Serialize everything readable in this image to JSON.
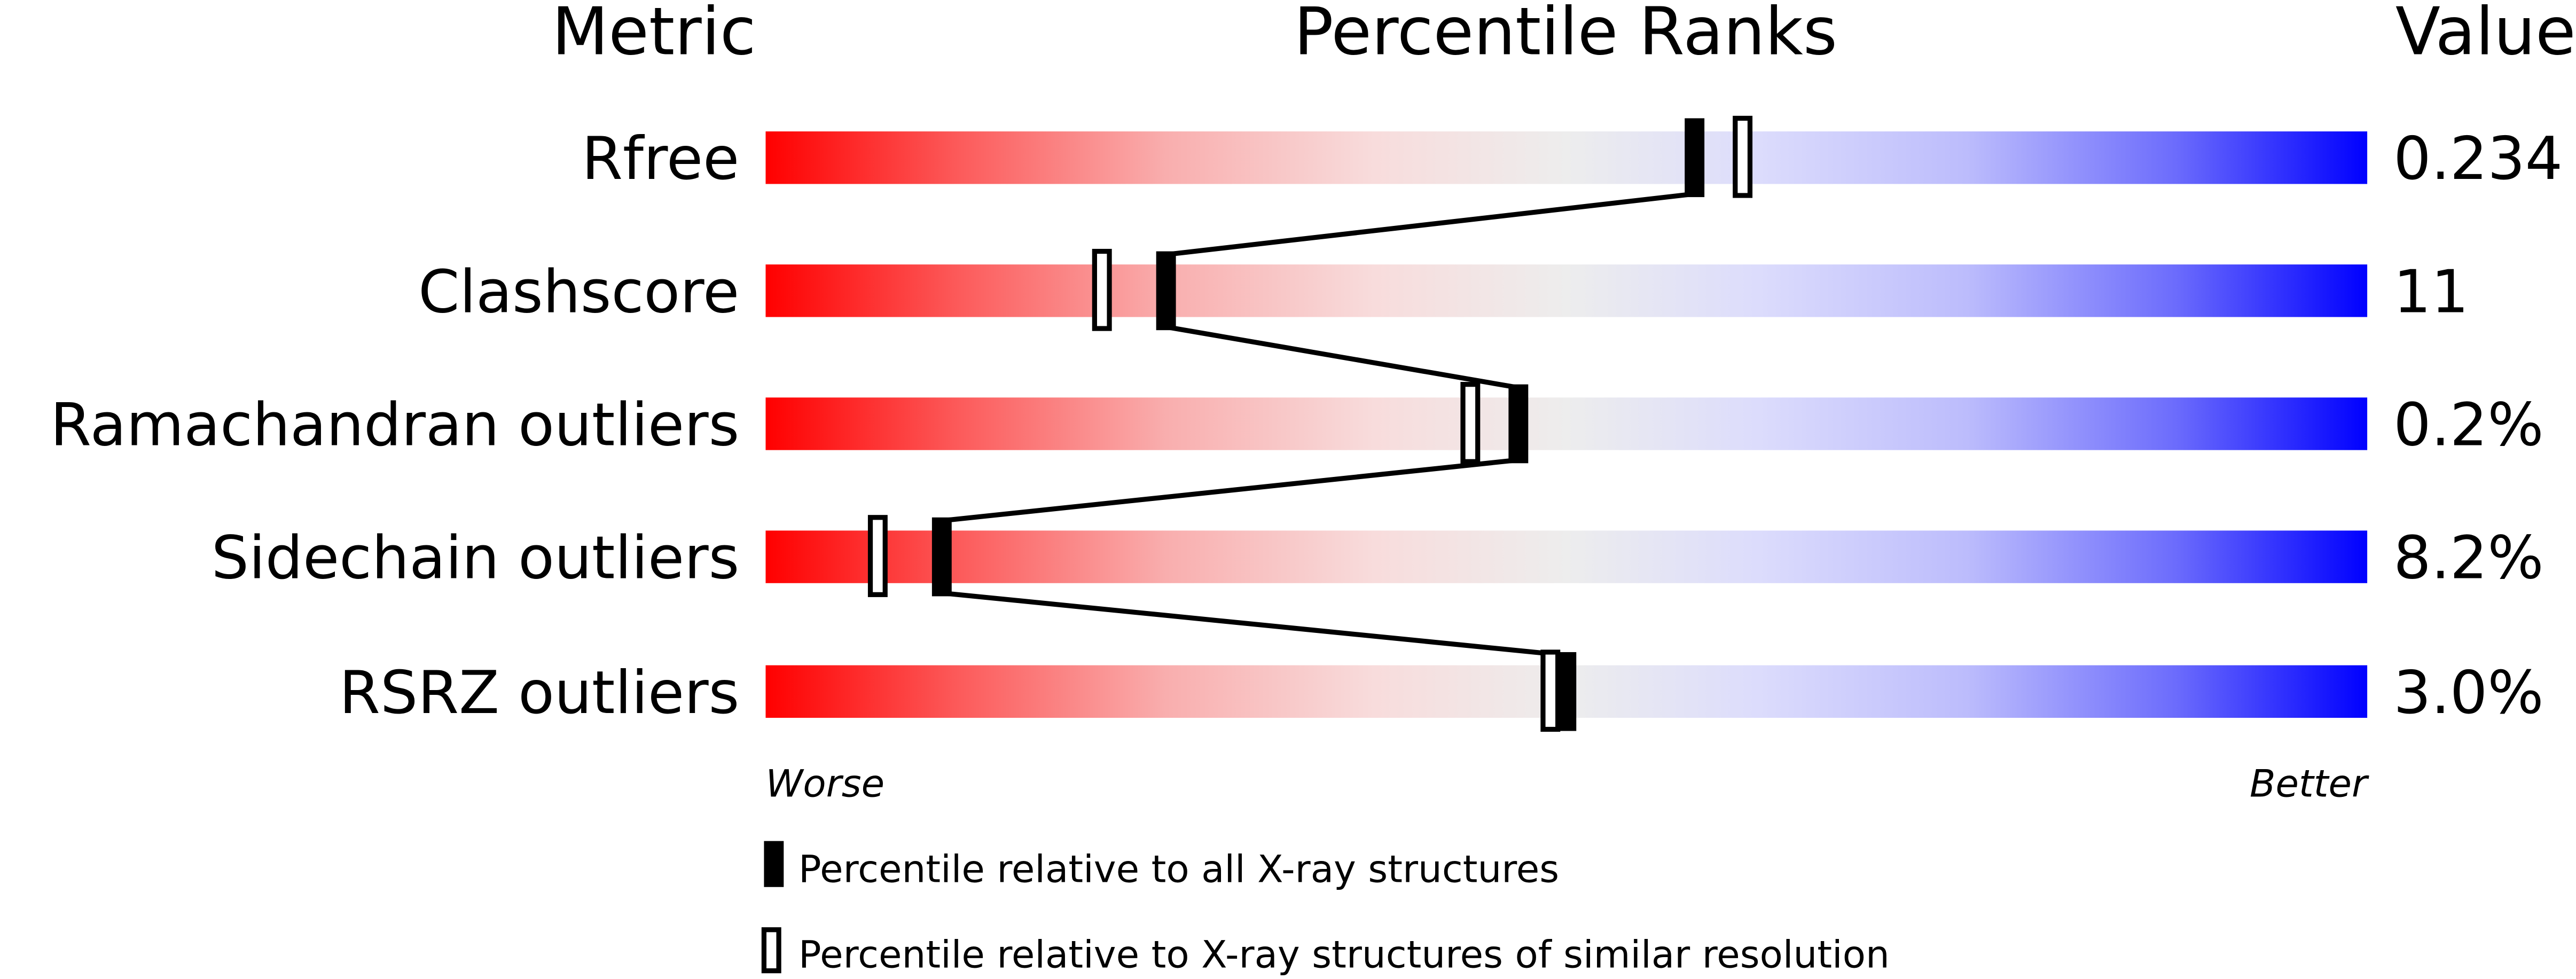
{
  "chart_data": {
    "type": "percentile-bar",
    "headers": {
      "metric": "Metric",
      "ranks": "Percentile Ranks",
      "value": "Value"
    },
    "xlim": [
      0,
      100
    ],
    "axis_labels": {
      "left": "Worse",
      "right": "Better"
    },
    "gradient_colors": {
      "worse": "#ff0000",
      "middle": "#eeeeee",
      "better": "#0000ff"
    },
    "metrics": [
      {
        "name": "Rfree",
        "value": "0.234",
        "percentile_all": 58,
        "percentile_similar": 61
      },
      {
        "name": "Clashscore",
        "value": "11",
        "percentile_all": 25,
        "percentile_similar": 21
      },
      {
        "name": "Ramachandran outliers",
        "value": "0.2%",
        "percentile_all": 47,
        "percentile_similar": 44
      },
      {
        "name": "Sidechain outliers",
        "value": "8.2%",
        "percentile_all": 11,
        "percentile_similar": 7
      },
      {
        "name": "RSRZ outliers",
        "value": "3.0%",
        "percentile_all": 50,
        "percentile_similar": 49
      }
    ],
    "legend": [
      {
        "marker": "filled",
        "label": "Percentile relative to all X-ray structures"
      },
      {
        "marker": "open",
        "label": "Percentile relative to X-ray structures of similar resolution"
      }
    ]
  }
}
